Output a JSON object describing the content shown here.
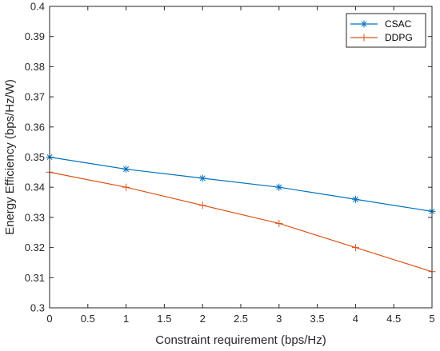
{
  "chart_data": {
    "type": "line",
    "title": "",
    "xlabel": "Constraint requirement (bps/Hz)",
    "ylabel": "Energy Efficiency (bps/Hz/W)",
    "xlim": [
      0,
      5
    ],
    "ylim": [
      0.3,
      0.4
    ],
    "xticks": [
      0,
      0.5,
      1,
      1.5,
      2,
      2.5,
      3,
      3.5,
      4,
      4.5,
      5
    ],
    "yticks": [
      0.3,
      0.31,
      0.32,
      0.33,
      0.34,
      0.35,
      0.36,
      0.37,
      0.38,
      0.39,
      0.4
    ],
    "xtick_labels": [
      "0",
      "0.5",
      "1",
      "1.5",
      "2",
      "2.5",
      "3",
      "3.5",
      "4",
      "4.5",
      "5"
    ],
    "ytick_labels": [
      "0.3",
      "0.31",
      "0.32",
      "0.33",
      "0.34",
      "0.35",
      "0.36",
      "0.37",
      "0.38",
      "0.39",
      "0.4"
    ],
    "grid": false,
    "legend_position": "top-right",
    "x": [
      0,
      1,
      2,
      3,
      4,
      5
    ],
    "series": [
      {
        "name": "CSAC",
        "values": [
          0.35,
          0.346,
          0.343,
          0.34,
          0.336,
          0.332
        ],
        "color": "#0072BD",
        "marker": "asterisk"
      },
      {
        "name": "DDPG",
        "values": [
          0.345,
          0.34,
          0.334,
          0.328,
          0.32,
          0.312
        ],
        "color": "#D95319",
        "marker": "plus"
      }
    ]
  }
}
